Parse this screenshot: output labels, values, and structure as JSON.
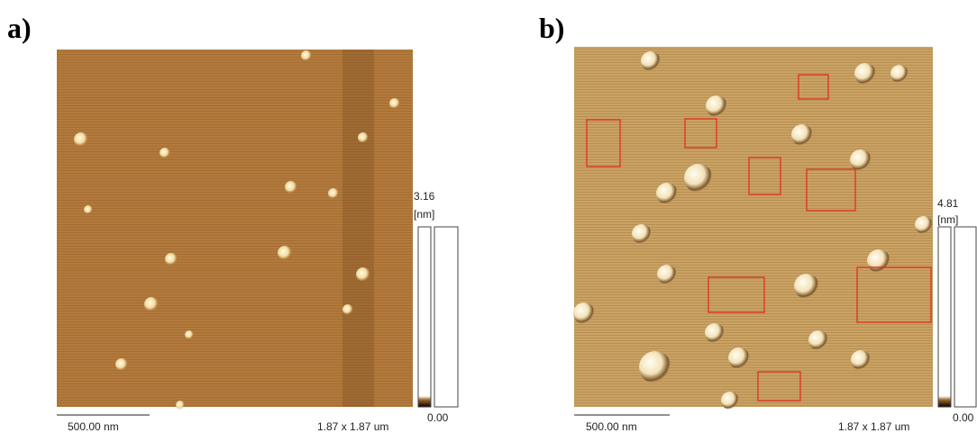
{
  "panels": [
    {
      "label": "a)",
      "scale_bar": "500.00 nm",
      "scan_size": "1.87 x 1.87 um",
      "max": "3.16",
      "unit": "[nm]",
      "min": "0.00"
    },
    {
      "label": "b)",
      "scale_bar": "500.00 nm",
      "scan_size": "1.87 x 1.87 um",
      "max": "4.81",
      "unit": "[nm]",
      "min": "0.00"
    }
  ]
}
